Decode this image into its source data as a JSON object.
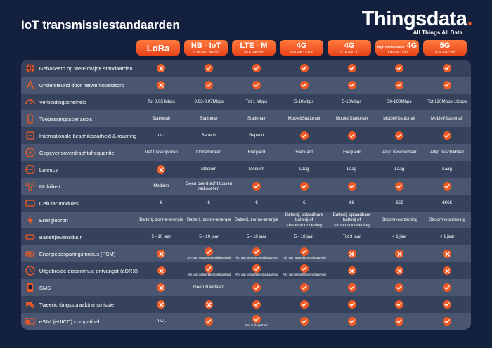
{
  "title": "IoT transmissiestandaarden",
  "logo": {
    "word": "Thingsdata",
    "dot": ".",
    "tagline": "All Things All Data"
  },
  "standards": [
    {
      "main": "LoRa",
      "sub": ""
    },
    {
      "main": "NB - IoT",
      "sub": "(LTE Cat - NB1/2)"
    },
    {
      "main": "LTE - M",
      "sub": "(LTE Cat - M)"
    },
    {
      "main": "4G",
      "sub": "(LTE Cat - 1 BIS)"
    },
    {
      "main": "4G",
      "sub": "(LTE Cat - 1)"
    },
    {
      "main": "4G",
      "pre": "High Performance",
      "sub": "(LTE Cat - 4/6)"
    },
    {
      "main": "5G",
      "sub": "(LTE Cat - 20)"
    }
  ],
  "colors": {
    "background": "#13213f",
    "table": "#4a5570",
    "alt_row": "#36415b",
    "accent": "#f15a24"
  },
  "rows": [
    {
      "icon": "globe-icon",
      "label": "Gebaseerd op wereldwijde standaarden",
      "cells": [
        {
          "m": "x"
        },
        {
          "m": "check"
        },
        {
          "m": "check"
        },
        {
          "m": "check"
        },
        {
          "m": "check"
        },
        {
          "m": "check"
        },
        {
          "m": "check"
        }
      ]
    },
    {
      "icon": "antenna-icon",
      "label": "Ondersteund door netwerkoperators",
      "cells": [
        {
          "m": "x"
        },
        {
          "m": "check"
        },
        {
          "m": "check"
        },
        {
          "m": "check"
        },
        {
          "m": "check"
        },
        {
          "m": "check"
        },
        {
          "m": "check"
        }
      ]
    },
    {
      "icon": "speedometer-icon",
      "label": "Verbindingssnelheid",
      "cells": [
        {
          "t": "Tot 0,05 Mbps"
        },
        {
          "t": "0.03-0.07Mbps"
        },
        {
          "t": "Tot 1 Mbps"
        },
        {
          "t": "5-10Mbps"
        },
        {
          "t": "5-10Mbps"
        },
        {
          "t": "50-100Mbps"
        },
        {
          "t": "Tot 120Mbps-1Gbps"
        }
      ]
    },
    {
      "icon": "mobile-scenario-icon",
      "label": "Toepassingsscenario's",
      "cells": [
        {
          "t": "Stationair"
        },
        {
          "t": "Stationair"
        },
        {
          "t": "Stationair"
        },
        {
          "t": "Mobiel/Stationair"
        },
        {
          "t": "Mobiel/Stationair"
        },
        {
          "t": "Mobiel/Stationair"
        },
        {
          "t": "Mobiel/Stationair"
        }
      ]
    },
    {
      "icon": "roaming-icon",
      "label": "Internationale beschikbaarheid & roaming",
      "cells": [
        {
          "t": "n.v.t."
        },
        {
          "t": "Beperkt"
        },
        {
          "t": "Beperkt"
        },
        {
          "m": "check"
        },
        {
          "m": "check"
        },
        {
          "m": "check"
        },
        {
          "m": "check"
        }
      ]
    },
    {
      "icon": "frequency-icon",
      "label": "Gegevensoverdrachtsfrequentie",
      "cells": [
        {
          "t": "Met tussenpozen"
        },
        {
          "t": "Onderbroken"
        },
        {
          "t": "Frequent"
        },
        {
          "t": "Frequent"
        },
        {
          "t": "Frequent"
        },
        {
          "t": "Altijd beschikbaar"
        },
        {
          "t": "Altijd beschikbaar"
        }
      ]
    },
    {
      "icon": "latency-icon",
      "label": "Latency",
      "cells": [
        {
          "m": "x"
        },
        {
          "t": "Medium"
        },
        {
          "t": "Medium"
        },
        {
          "t": "Laag"
        },
        {
          "t": "Laag"
        },
        {
          "t": "Laag"
        },
        {
          "t": "Laag"
        }
      ]
    },
    {
      "icon": "mobility-icon",
      "label": "Mobiliteit",
      "cells": [
        {
          "t": "Medium"
        },
        {
          "t": "Geen overdracht tussen radiocellen"
        },
        {
          "m": "check"
        },
        {
          "m": "check"
        },
        {
          "m": "check"
        },
        {
          "m": "check"
        },
        {
          "m": "check"
        }
      ]
    },
    {
      "icon": "module-icon",
      "label": "Cellular modules",
      "cells": [
        {
          "t": "€"
        },
        {
          "t": "€"
        },
        {
          "t": "€"
        },
        {
          "t": "€"
        },
        {
          "t": "€€"
        },
        {
          "t": "€€€"
        },
        {
          "t": "€€€€"
        }
      ]
    },
    {
      "icon": "lightning-icon",
      "label": "Energiebron",
      "cells": [
        {
          "t": "Batterij, zonne-energie"
        },
        {
          "t": "Batterij, zonne-energie"
        },
        {
          "t": "Batterij, zonne-energie"
        },
        {
          "t": "Batterij, oplaadbare batterij of stroomvoorziening"
        },
        {
          "t": "Batterij, oplaadbare batterij of stroomvoorziening"
        },
        {
          "t": "Stroomvoorziening"
        },
        {
          "t": "Stroomvoorziening"
        }
      ]
    },
    {
      "icon": "battery-life-icon",
      "label": "Batterijlevensduur",
      "cells": [
        {
          "t": "5 - 10 jaar"
        },
        {
          "t": "5 - 10 jaar"
        },
        {
          "t": "5 - 10 jaar"
        },
        {
          "t": "5 - 10 jaar"
        },
        {
          "t": "Tot 3 jaar"
        },
        {
          "t": "< 1 jaar"
        },
        {
          "t": "< 1 jaar"
        }
      ]
    },
    {
      "icon": "battery-icon",
      "label": "Energiebesparingsmodus (PSM)",
      "cells": [
        {
          "m": "x"
        },
        {
          "m": "check",
          "n": "Afh. van netwerkbeschikbaarheid"
        },
        {
          "m": "check",
          "n": "Afh. van netwerkbeschikbaarheid"
        },
        {
          "m": "check",
          "n": "Afh. van netwerkbeschikbaarheid"
        },
        {
          "m": "x"
        },
        {
          "m": "x"
        },
        {
          "m": "x"
        }
      ]
    },
    {
      "icon": "edrx-icon",
      "label": "Uitgebreide discontinue ontvangst (eDRX)",
      "cells": [
        {
          "m": "x"
        },
        {
          "m": "check",
          "n": "Afh. van netwerkbeschikbaarheid"
        },
        {
          "m": "check",
          "n": "Afh. van netwerkbeschikbaarheid"
        },
        {
          "m": "check",
          "n": "Afh. van netwerkbeschikbaarheid"
        },
        {
          "m": "x"
        },
        {
          "m": "x"
        },
        {
          "m": "x"
        }
      ]
    },
    {
      "icon": "sms-icon",
      "label": "SMS",
      "cells": [
        {
          "m": "x"
        },
        {
          "t": "Geen standaard"
        },
        {
          "m": "check"
        },
        {
          "m": "check"
        },
        {
          "m": "check"
        },
        {
          "m": "check"
        },
        {
          "m": "check"
        }
      ]
    },
    {
      "icon": "speech-icon",
      "label": "Tweerichtingsspraaktransmissie",
      "cells": [
        {
          "m": "x"
        },
        {
          "m": "x"
        },
        {
          "m": "check"
        },
        {
          "m": "check"
        },
        {
          "m": "check"
        },
        {
          "m": "check"
        },
        {
          "m": "check"
        }
      ]
    },
    {
      "icon": "esim-icon",
      "label": "eSIM (eUICC) compatibel",
      "cells": [
        {
          "t": "n.v.t."
        },
        {
          "m": "check"
        },
        {
          "m": "check",
          "n": "Niet in slaapstand"
        },
        {
          "m": "check"
        },
        {
          "m": "check"
        },
        {
          "m": "check"
        },
        {
          "m": "check"
        }
      ]
    }
  ]
}
